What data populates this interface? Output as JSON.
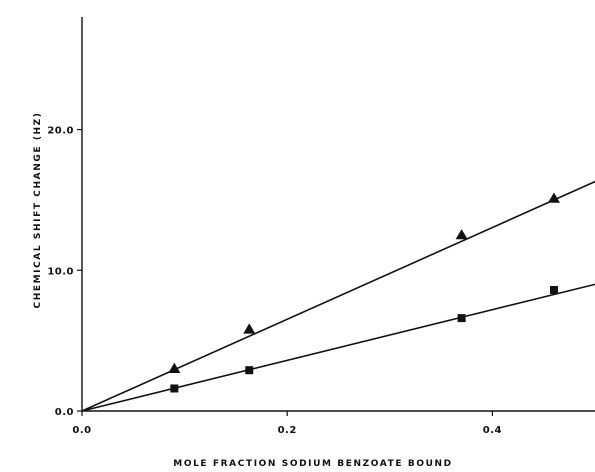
{
  "chart_data": {
    "type": "scatter",
    "xlabel": "MOLE FRACTION SODIUM BENZOATE BOUND",
    "ylabel": "CHEMICAL SHIFT CHANGE (HZ)",
    "xlim": [
      0,
      0.5
    ],
    "ylim": [
      0,
      28
    ],
    "x_ticks": [
      0.0,
      0.2,
      0.4
    ],
    "x_tick_labels": [
      "0.0",
      "0.2",
      "0.4"
    ],
    "y_ticks": [
      0.0,
      10.0,
      20.0
    ],
    "y_tick_labels": [
      "0.0",
      "10.0",
      "20.0"
    ],
    "grid": false,
    "series": [
      {
        "marker": "triangle",
        "color": "#111111",
        "x": [
          0.09,
          0.163,
          0.37,
          0.46
        ],
        "y": [
          3.0,
          5.8,
          12.5,
          15.1
        ],
        "fit_line": {
          "x": [
            0.0,
            0.5
          ],
          "y": [
            0.0,
            16.3
          ]
        }
      },
      {
        "marker": "square",
        "color": "#111111",
        "x": [
          0.09,
          0.163,
          0.37,
          0.46
        ],
        "y": [
          1.6,
          2.9,
          6.6,
          8.6
        ],
        "fit_line": {
          "x": [
            0.0,
            0.5
          ],
          "y": [
            0.0,
            9.0
          ]
        }
      }
    ]
  }
}
